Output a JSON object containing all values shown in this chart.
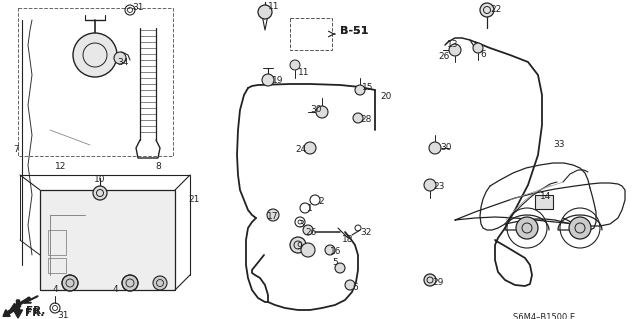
{
  "background_color": "#f5f5f0",
  "line_color": "#1a1a1a",
  "fig_width": 6.4,
  "fig_height": 3.19,
  "dpi": 100,
  "diagram_code": "S6M4–B1500 E",
  "ref_code": "B-51"
}
